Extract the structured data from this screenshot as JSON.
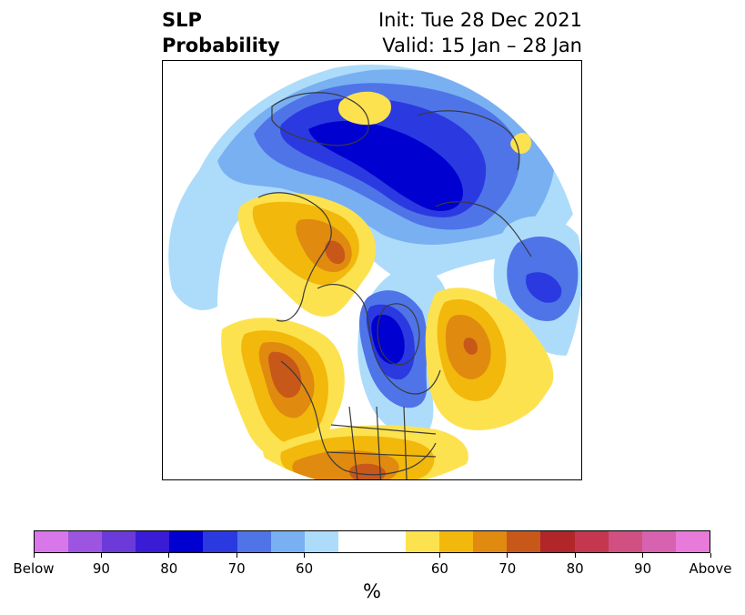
{
  "title": {
    "variable": "SLP",
    "product": "Probability",
    "init": "Init: Tue 28 Dec 2021",
    "valid": "Valid: 15 Jan – 28 Jan"
  },
  "colorbar": {
    "colors": [
      "#d877ea",
      "#9d54e0",
      "#6c3ad9",
      "#3a1bd6",
      "#0000d0",
      "#2a3ae0",
      "#4f74e8",
      "#78b0f2",
      "#addcfb",
      "#ffffff",
      "#ffffff",
      "#fde250",
      "#f2b80c",
      "#e08a10",
      "#c8581a",
      "#b22528",
      "#c4374f",
      "#d05082",
      "#d662b0",
      "#e87ad9"
    ],
    "tick_labels": [
      "Below",
      "90",
      "80",
      "70",
      "60",
      "60",
      "70",
      "80",
      "90",
      "Above"
    ],
    "unit": "%"
  },
  "map": {
    "projection": "north-polar-stereographic",
    "field": "sea-level-pressure-tercile-probability"
  }
}
